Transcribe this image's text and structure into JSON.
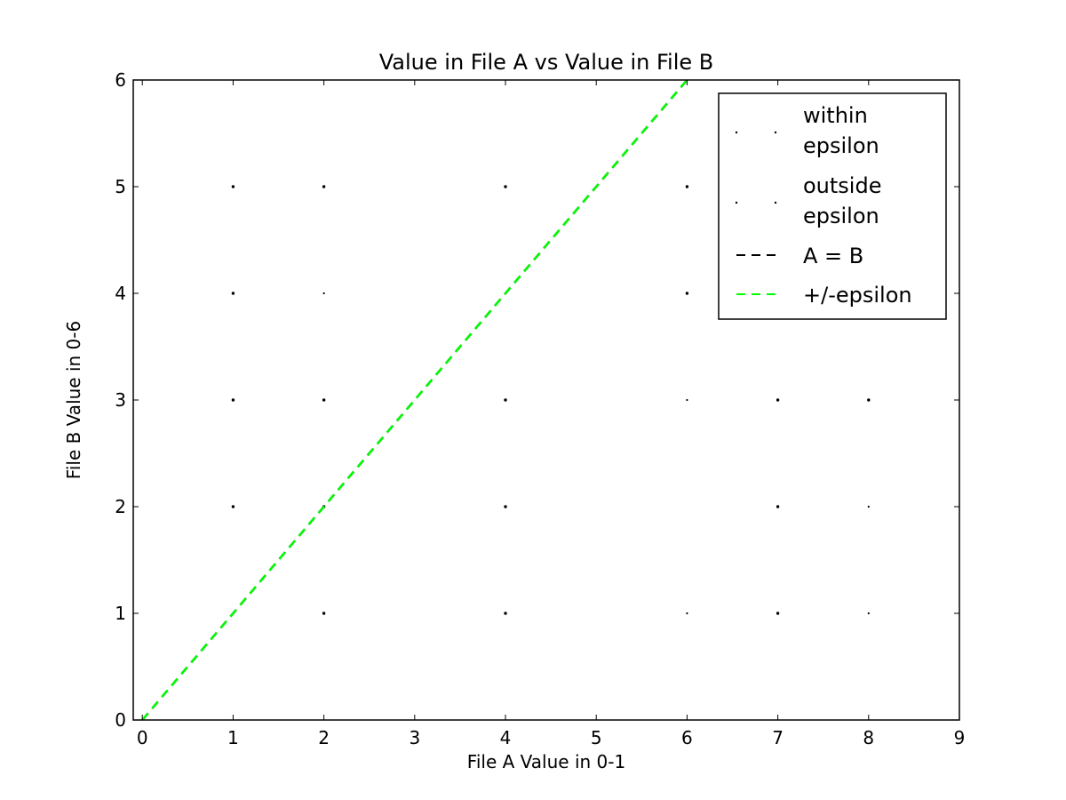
{
  "chart_data": {
    "type": "scatter",
    "title": "Value in File A vs Value in File B",
    "xlabel": "File A Value in 0-1",
    "ylabel": "File B Value in 0-6",
    "xlim": [
      -0.1,
      9
    ],
    "ylim": [
      0,
      6
    ],
    "xticks": [
      "0",
      "1",
      "2",
      "3",
      "4",
      "5",
      "6",
      "7",
      "8",
      "9"
    ],
    "yticks": [
      "0",
      "1",
      "2",
      "3",
      "4",
      "5",
      "6"
    ],
    "grid": false,
    "legend_position": "top-right",
    "series": [
      {
        "name": "within epsilon",
        "kind": "points",
        "color": "#000000",
        "points": [
          [
            2,
            4
          ],
          [
            6,
            3
          ],
          [
            8,
            2
          ],
          [
            6,
            1
          ],
          [
            8,
            1
          ]
        ]
      },
      {
        "name": "outside epsilon",
        "kind": "points",
        "color": "#000000",
        "points": [
          [
            1,
            5
          ],
          [
            2,
            5
          ],
          [
            4,
            5
          ],
          [
            6,
            5
          ],
          [
            1,
            4
          ],
          [
            6,
            4
          ],
          [
            1,
            3
          ],
          [
            2,
            3
          ],
          [
            4,
            3
          ],
          [
            7,
            3
          ],
          [
            8,
            3
          ],
          [
            1,
            2
          ],
          [
            2,
            2
          ],
          [
            4,
            2
          ],
          [
            7,
            2
          ],
          [
            2,
            1
          ],
          [
            4,
            1
          ],
          [
            7,
            1
          ]
        ]
      },
      {
        "name": "A = B",
        "kind": "line",
        "style": "dashed",
        "color": "#000000",
        "points": [
          [
            0,
            0
          ],
          [
            6,
            6
          ]
        ]
      },
      {
        "name": "+/-epsilon",
        "kind": "line",
        "style": "dashed",
        "color": "#00ff00",
        "points": [
          [
            0,
            0
          ],
          [
            6,
            6
          ]
        ]
      }
    ]
  }
}
